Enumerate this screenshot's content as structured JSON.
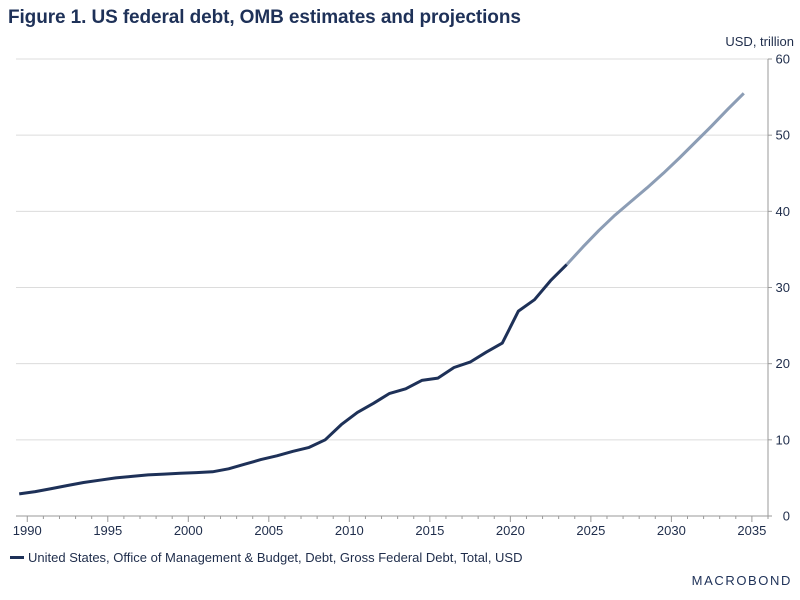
{
  "chart_data": {
    "type": "line",
    "title": "Figure 1. US federal debt, OMB estimates and projections",
    "unit_label": "USD, trillion",
    "xlim": [
      1989.3,
      2036.0
    ],
    "ylim": [
      0,
      60
    ],
    "x_ticks": [
      1990,
      1995,
      2000,
      2005,
      2010,
      2015,
      2020,
      2025,
      2030,
      2035
    ],
    "y_ticks": [
      0,
      10,
      20,
      30,
      40,
      50,
      60
    ],
    "grid": "horizontal",
    "legend_position": "bottom-left",
    "series": [
      {
        "name": "United States, Office of Management & Budget, Debt, Gross Federal Debt, Total, USD",
        "color": "#1e3158",
        "projection_color": "#8c9db5",
        "projection_start": 2023.5,
        "x": [
          1989.5,
          1990.5,
          1991.5,
          1992.5,
          1993.5,
          1994.5,
          1995.5,
          1996.5,
          1997.5,
          1998.5,
          1999.5,
          2000.5,
          2001.5,
          2002.5,
          2003.5,
          2004.5,
          2005.5,
          2006.5,
          2007.5,
          2008.5,
          2009.5,
          2010.5,
          2011.5,
          2012.5,
          2013.5,
          2014.5,
          2015.5,
          2016.5,
          2017.5,
          2018.5,
          2019.5,
          2020.5,
          2021.5,
          2022.5,
          2023.5,
          2024.5,
          2025.5,
          2026.5,
          2027.5,
          2028.5,
          2029.5,
          2030.5,
          2031.5,
          2032.5,
          2033.5,
          2034.5
        ],
        "values": [
          2.9,
          3.2,
          3.6,
          4.0,
          4.4,
          4.7,
          5.0,
          5.2,
          5.4,
          5.5,
          5.6,
          5.7,
          5.8,
          6.2,
          6.8,
          7.4,
          7.9,
          8.5,
          9.0,
          10.0,
          12.0,
          13.6,
          14.8,
          16.1,
          16.7,
          17.8,
          18.1,
          19.5,
          20.2,
          21.5,
          22.7,
          26.9,
          28.4,
          30.9,
          33.0,
          35.3,
          37.5,
          39.5,
          41.3,
          43.1,
          45.0,
          47.0,
          49.1,
          51.2,
          53.4,
          55.5
        ]
      }
    ]
  },
  "branding": {
    "logo_text": "MACROBOND"
  }
}
